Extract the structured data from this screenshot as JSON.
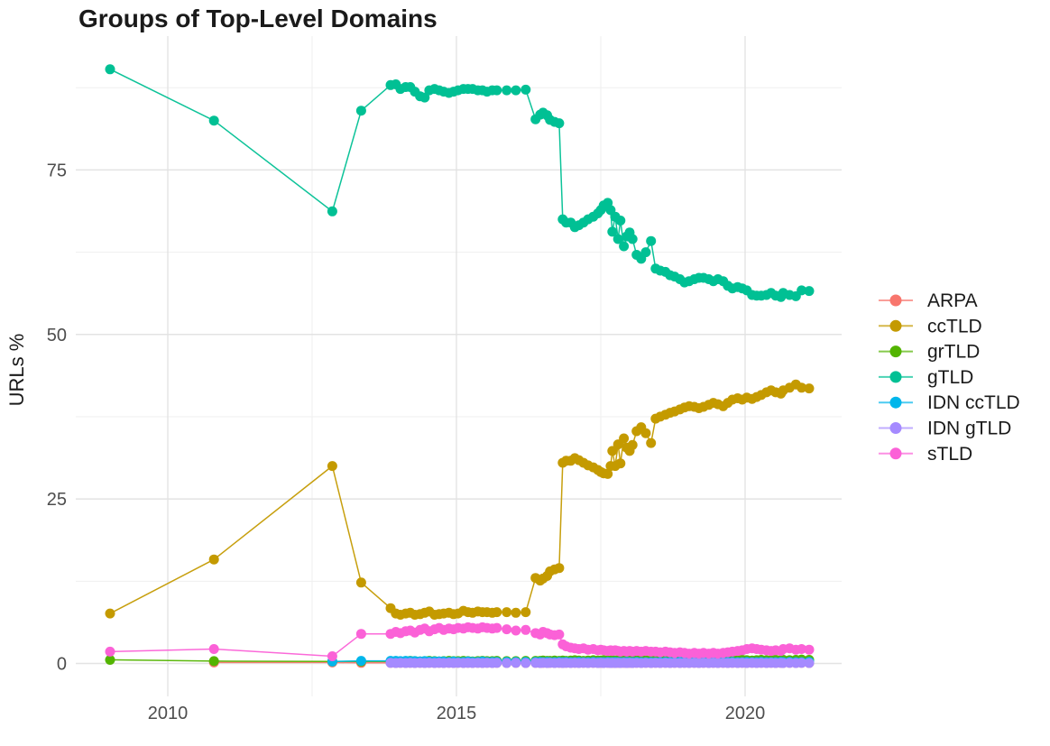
{
  "title": "Groups of Top-Level Domains",
  "y_axis_label": "URLs %",
  "colors": {
    "background": "#ffffff",
    "grid_major": "#e3e3e3",
    "grid_minor": "#efefef",
    "tick_text": "#4d4d4d",
    "title_text": "#1a1a1a"
  },
  "chart_data": {
    "type": "scatter",
    "title": "Groups of Top-Level Domains",
    "xlabel": "",
    "ylabel": "URLs %",
    "legend_position": "right",
    "grid": true,
    "x_ticks": [
      2010,
      2015,
      2020
    ],
    "x_minor_ticks": [
      2012.5,
      2017.5
    ],
    "y_ticks": [
      0,
      25,
      50,
      75
    ],
    "y_minor_ticks": [
      12.5,
      37.5,
      62.5,
      87.5
    ],
    "xlim": [
      2008.4,
      2021.65
    ],
    "ylim": [
      -5,
      95.4
    ],
    "dense_x": [
      2013.86,
      2013.95,
      2014.03,
      2014.12,
      2014.2,
      2014.28,
      2014.37,
      2014.45,
      2014.53,
      2014.62,
      2014.7,
      2014.78,
      2014.87,
      2014.95,
      2015.03,
      2015.12,
      2015.2,
      2015.28,
      2015.37,
      2015.45,
      2015.53,
      2015.62,
      2015.7,
      2015.87,
      2016.03,
      2016.2,
      2016.37,
      2016.45,
      2016.5,
      2016.57,
      2016.62,
      2016.7,
      2016.78,
      2016.84,
      2016.9,
      2016.98,
      2017.05,
      2017.12,
      2017.2,
      2017.28,
      2017.37,
      2017.45,
      2017.5,
      2017.55,
      2017.62,
      2017.67,
      2017.7,
      2017.75,
      2017.8,
      2017.84,
      2017.9,
      2017.95,
      2018.0,
      2018.05,
      2018.12,
      2018.2,
      2018.28,
      2018.37,
      2018.45,
      2018.53,
      2018.62,
      2018.7,
      2018.78,
      2018.87,
      2018.95,
      2019.03,
      2019.12,
      2019.2,
      2019.28,
      2019.37,
      2019.45,
      2019.53,
      2019.62,
      2019.7,
      2019.78,
      2019.87,
      2019.95,
      2020.03,
      2020.12,
      2020.2,
      2020.28,
      2020.37,
      2020.45,
      2020.53,
      2020.62,
      2020.66,
      2020.77,
      2020.88,
      2020.98,
      2021.11
    ],
    "series": [
      {
        "name": "ARPA",
        "color": "#F8766D",
        "early": [
          [
            2010.8,
            0.15
          ],
          [
            2012.85,
            0.15
          ],
          [
            2013.35,
            0.1
          ]
        ],
        "dense": [
          0.1,
          0.07,
          0.1,
          0.07,
          0.1,
          0.07,
          0.1,
          0.07,
          0.1,
          0.07,
          0.1,
          0.07,
          0.1,
          0.07,
          0.1,
          0.07,
          0.1,
          0.07,
          0.1,
          0.07,
          0.1,
          0.07,
          0.1,
          0.07,
          0.1,
          0.07,
          0.1,
          0.07,
          0.1,
          0.07,
          0.1,
          0.07,
          0.1,
          0.07,
          0.1,
          0.07,
          0.1,
          0.07,
          0.1,
          0.07,
          0.1,
          0.07,
          0.1,
          0.07,
          0.1,
          0.07,
          0.1,
          0.07,
          0.1,
          0.07,
          0.1,
          0.07,
          0.1,
          0.07,
          0.1,
          0.07,
          0.1,
          0.07,
          0.1,
          0.07,
          0.1,
          0.07,
          0.1,
          0.07,
          0.1,
          0.07,
          0.1,
          0.07,
          0.1,
          0.07,
          0.1,
          0.07,
          0.1,
          0.07,
          0.1,
          0.07,
          0.1,
          0.07,
          0.1,
          0.07,
          0.1,
          0.07,
          0.1,
          0.07,
          0.1,
          0.07,
          0.1,
          0.07,
          0.1,
          0.07
        ]
      },
      {
        "name": "ccTLD",
        "color": "#C49A00",
        "early": [
          [
            2009,
            7.6
          ],
          [
            2010.8,
            15.8
          ],
          [
            2012.85,
            30
          ],
          [
            2013.35,
            12.3
          ]
        ],
        "dense": [
          8.4,
          7.6,
          7.4,
          7.6,
          7.7,
          7.4,
          7.5,
          7.7,
          7.9,
          7.4,
          7.5,
          7.6,
          7.7,
          7.5,
          7.6,
          8,
          7.8,
          7.7,
          7.9,
          7.8,
          7.8,
          7.7,
          7.8,
          7.8,
          7.7,
          7.8,
          13,
          12.6,
          12.9,
          13.3,
          14,
          14.3,
          14.5,
          30.5,
          30.8,
          30.8,
          31.2,
          30.9,
          30.5,
          30.1,
          29.8,
          29.4,
          29.1,
          28.9,
          28.8,
          30,
          32.3,
          30,
          33.3,
          30.4,
          34.2,
          32.8,
          32.3,
          33.2,
          35.3,
          35.9,
          35,
          33.5,
          37.2,
          37.5,
          37.8,
          38.1,
          38.3,
          38.6,
          38.9,
          39.1,
          39,
          38.8,
          39,
          39.3,
          39.6,
          39.4,
          39.1,
          39.6,
          40.1,
          40.3,
          40.1,
          40.4,
          40.2,
          40.5,
          40.8,
          41.2,
          41.5,
          41.2,
          41,
          41.5,
          41.9,
          42.4,
          41.9,
          41.8
        ]
      },
      {
        "name": "grTLD",
        "color": "#53B400",
        "early": [
          [
            2009,
            0.55
          ],
          [
            2010.8,
            0.35
          ],
          [
            2012.85,
            0.3
          ],
          [
            2013.35,
            0.3
          ]
        ],
        "dense": [
          0.3,
          0.35,
          0.3,
          0.35,
          0.4,
          0.35,
          0.3,
          0.35,
          0.4,
          0.35,
          0.3,
          0.35,
          0.4,
          0.35,
          0.35,
          0.4,
          0.35,
          0.3,
          0.35,
          0.4,
          0.35,
          0.35,
          0.4,
          0.35,
          0.35,
          0.4,
          0.4,
          0.4,
          0.45,
          0.4,
          0.4,
          0.45,
          0.4,
          0.45,
          0.4,
          0.45,
          0.5,
          0.45,
          0.4,
          0.45,
          0.5,
          0.45,
          0.45,
          0.5,
          0.45,
          0.45,
          0.5,
          0.45,
          0.5,
          0.45,
          0.45,
          0.5,
          0.45,
          0.5,
          0.5,
          0.45,
          0.5,
          0.45,
          0.5,
          0.45,
          0.5,
          0.5,
          0.45,
          0.5,
          0.55,
          0.5,
          0.45,
          0.5,
          0.55,
          0.5,
          0.5,
          0.45,
          0.5,
          0.55,
          0.5,
          0.5,
          0.55,
          0.5,
          0.45,
          0.5,
          0.55,
          0.5,
          0.5,
          0.55,
          0.5,
          0.55,
          0.5,
          0.55,
          0.6,
          0.55
        ]
      },
      {
        "name": "gTLD",
        "color": "#00C094",
        "early": [
          [
            2009,
            90.3
          ],
          [
            2010.8,
            82.5
          ],
          [
            2012.85,
            68.7
          ],
          [
            2013.35,
            84
          ]
        ],
        "dense": [
          87.9,
          88,
          87.3,
          87.6,
          87.6,
          86.9,
          86.2,
          86,
          87.1,
          87.3,
          87.1,
          86.9,
          86.7,
          86.9,
          87.1,
          87.3,
          87.3,
          87.3,
          87.1,
          87.1,
          86.9,
          87.1,
          87.1,
          87.1,
          87.1,
          87.2,
          82.7,
          83.4,
          83.7,
          83.3,
          82.6,
          82.3,
          82.1,
          67.5,
          67,
          67,
          66.3,
          66.6,
          67,
          67.5,
          67.9,
          68.4,
          68.9,
          69.6,
          70,
          68.9,
          65.6,
          67.9,
          64.5,
          67.3,
          63.4,
          64.9,
          65.5,
          64.5,
          62.1,
          61.5,
          62.5,
          64.2,
          60,
          59.7,
          59.5,
          59,
          58.8,
          58.4,
          57.9,
          58.1,
          58.4,
          58.6,
          58.6,
          58.4,
          58.1,
          58.4,
          58.1,
          57.4,
          57,
          57.2,
          57,
          56.7,
          56,
          55.9,
          55.9,
          56,
          56.3,
          55.9,
          55.7,
          56.3,
          56,
          55.8,
          56.7,
          56.6
        ]
      },
      {
        "name": "IDN ccTLD",
        "color": "#00B6EB",
        "early": [
          [
            2012.85,
            0.3
          ],
          [
            2013.35,
            0.4
          ]
        ],
        "dense": [
          0.4,
          0.4,
          0.35,
          0.4,
          0.35,
          0.35,
          0.3,
          0.35,
          0.3,
          0.3,
          0.3,
          0.3,
          0.25,
          0.3,
          0.25,
          0.25,
          0.3,
          0.25,
          0.25,
          0.3,
          0.25,
          0.25,
          0.25,
          0.25,
          0.25,
          0.25,
          0.25,
          0.25,
          0.2,
          0.25,
          0.2,
          0.2,
          0.25,
          0.2,
          0.25,
          0.2,
          0.2,
          0.25,
          0.2,
          0.2,
          0.25,
          0.2,
          0.2,
          0.2,
          0.25,
          0.2,
          0.2,
          0.25,
          0.2,
          0.2,
          0.2,
          0.25,
          0.2,
          0.2,
          0.25,
          0.2,
          0.2,
          0.2,
          0.2,
          0.2,
          0.25,
          0.2,
          0.2,
          0.25,
          0.2,
          0.2,
          0.2,
          0.25,
          0.2,
          0.2,
          0.25,
          0.2,
          0.2,
          0.2,
          0.25,
          0.2,
          0.2,
          0.25,
          0.2,
          0.2,
          0.25,
          0.2,
          0.2,
          0.2,
          0.25,
          0.2,
          0.25,
          0.2,
          0.2,
          0.25
        ]
      },
      {
        "name": "IDN gTLD",
        "color": "#A58AFF",
        "early": [],
        "dense": [
          0.1,
          0.07,
          0.1,
          0.07,
          0.1,
          0.07,
          0.1,
          0.07,
          0.1,
          0.07,
          0.1,
          0.07,
          0.1,
          0.07,
          0.1,
          0.07,
          0.1,
          0.07,
          0.1,
          0.07,
          0.1,
          0.07,
          0.1,
          0.07,
          0.1,
          0.07,
          0.1,
          0.07,
          0.1,
          0.07,
          0.1,
          0.07,
          0.1,
          0.07,
          0.1,
          0.07,
          0.1,
          0.07,
          0.1,
          0.07,
          0.1,
          0.07,
          0.1,
          0.07,
          0.1,
          0.07,
          0.1,
          0.07,
          0.1,
          0.07,
          0.1,
          0.07,
          0.1,
          0.07,
          0.1,
          0.07,
          0.1,
          0.07,
          0.1,
          0.07,
          0.1,
          0.07,
          0.1,
          0.07,
          0.1,
          0.07,
          0.1,
          0.07,
          0.1,
          0.07,
          0.1,
          0.07,
          0.1,
          0.07,
          0.1,
          0.07,
          0.1,
          0.07,
          0.1,
          0.07,
          0.1,
          0.07,
          0.1,
          0.07,
          0.1,
          0.07,
          0.1,
          0.07,
          0.1,
          0.07
        ]
      },
      {
        "name": "sTLD",
        "color": "#FB61D7",
        "early": [
          [
            2009,
            1.8
          ],
          [
            2010.8,
            2.2
          ],
          [
            2012.85,
            1.1
          ],
          [
            2013.35,
            4.5
          ]
        ],
        "dense": [
          4.5,
          4.8,
          4.6,
          4.9,
          5,
          4.7,
          5.1,
          5.3,
          4.9,
          5.2,
          5.4,
          5.1,
          5.3,
          5.2,
          5.4,
          5.3,
          5.5,
          5.4,
          5.3,
          5.5,
          5.4,
          5.3,
          5.4,
          5.2,
          5,
          5.1,
          4.6,
          4.4,
          4.8,
          4.6,
          4.4,
          4.3,
          4.4,
          2.9,
          2.6,
          2.4,
          2.3,
          2.2,
          2.3,
          2.1,
          2.2,
          2,
          2.1,
          2,
          1.9,
          2,
          1.9,
          2,
          1.9,
          1.8,
          1.9,
          1.8,
          1.9,
          1.8,
          1.9,
          1.8,
          1.9,
          1.8,
          1.8,
          1.7,
          1.8,
          1.7,
          1.6,
          1.7,
          1.6,
          1.5,
          1.6,
          1.5,
          1.6,
          1.5,
          1.6,
          1.5,
          1.6,
          1.7,
          1.8,
          1.9,
          2,
          2.2,
          2.3,
          2.2,
          2.1,
          2,
          1.9,
          2,
          1.9,
          2.2,
          2.3,
          2.1,
          2.2,
          2.1
        ]
      }
    ]
  },
  "legend": {
    "items": [
      {
        "label": "ARPA"
      },
      {
        "label": "ccTLD"
      },
      {
        "label": "grTLD"
      },
      {
        "label": "gTLD"
      },
      {
        "label": "IDN ccTLD"
      },
      {
        "label": "IDN gTLD"
      },
      {
        "label": "sTLD"
      }
    ]
  }
}
